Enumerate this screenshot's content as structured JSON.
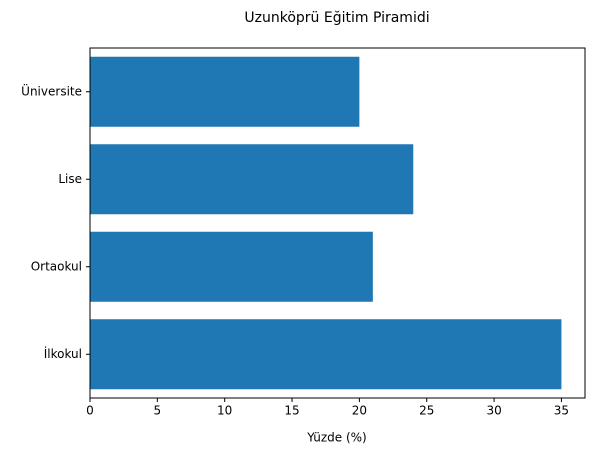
{
  "chart_data": {
    "type": "barh",
    "title": "Uzunköprü Eğitim Piramidi",
    "x_label": "Yüzde (%)",
    "categories": [
      "İlkokul",
      "Ortaokul",
      "Lise",
      "Üniversite"
    ],
    "values": [
      35,
      21,
      24,
      20
    ],
    "color": "#1f77b4",
    "xlim": [
      0,
      36.75
    ],
    "xticks": [
      0,
      5,
      10,
      15,
      20,
      25,
      30,
      35
    ],
    "grid": false
  }
}
